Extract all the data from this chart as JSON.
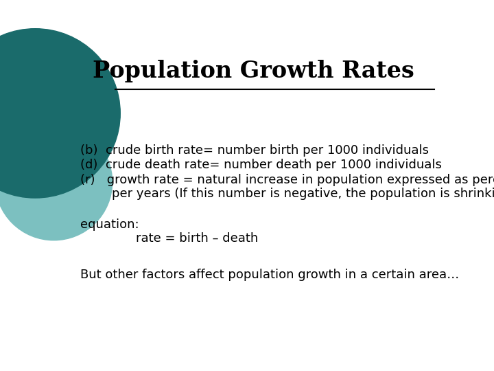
{
  "title": "Population Growth Rates",
  "title_fontsize": 24,
  "title_font": "serif",
  "bg_color": "#ffffff",
  "line_color": "#000000",
  "line_width": 1.5,
  "body_lines": [
    "(b)  crude birth rate= number birth per 1000 individuals",
    "(d)  crude death rate= number death per 1000 individuals",
    "(r)   growth rate = natural increase in population expressed as percent",
    "        per years (If this number is negative, the population is shrinking.)"
  ],
  "body_fontsize": 13,
  "body_font": "sans-serif",
  "equation_label": "equation:",
  "equation_text": "rate = birth – death",
  "equation_fontsize": 13,
  "footer_text": "But other factors affect population growth in a certain area…",
  "footer_fontsize": 13,
  "teal_dark": "#1a6b6b",
  "teal_light": "#7cc0c0"
}
